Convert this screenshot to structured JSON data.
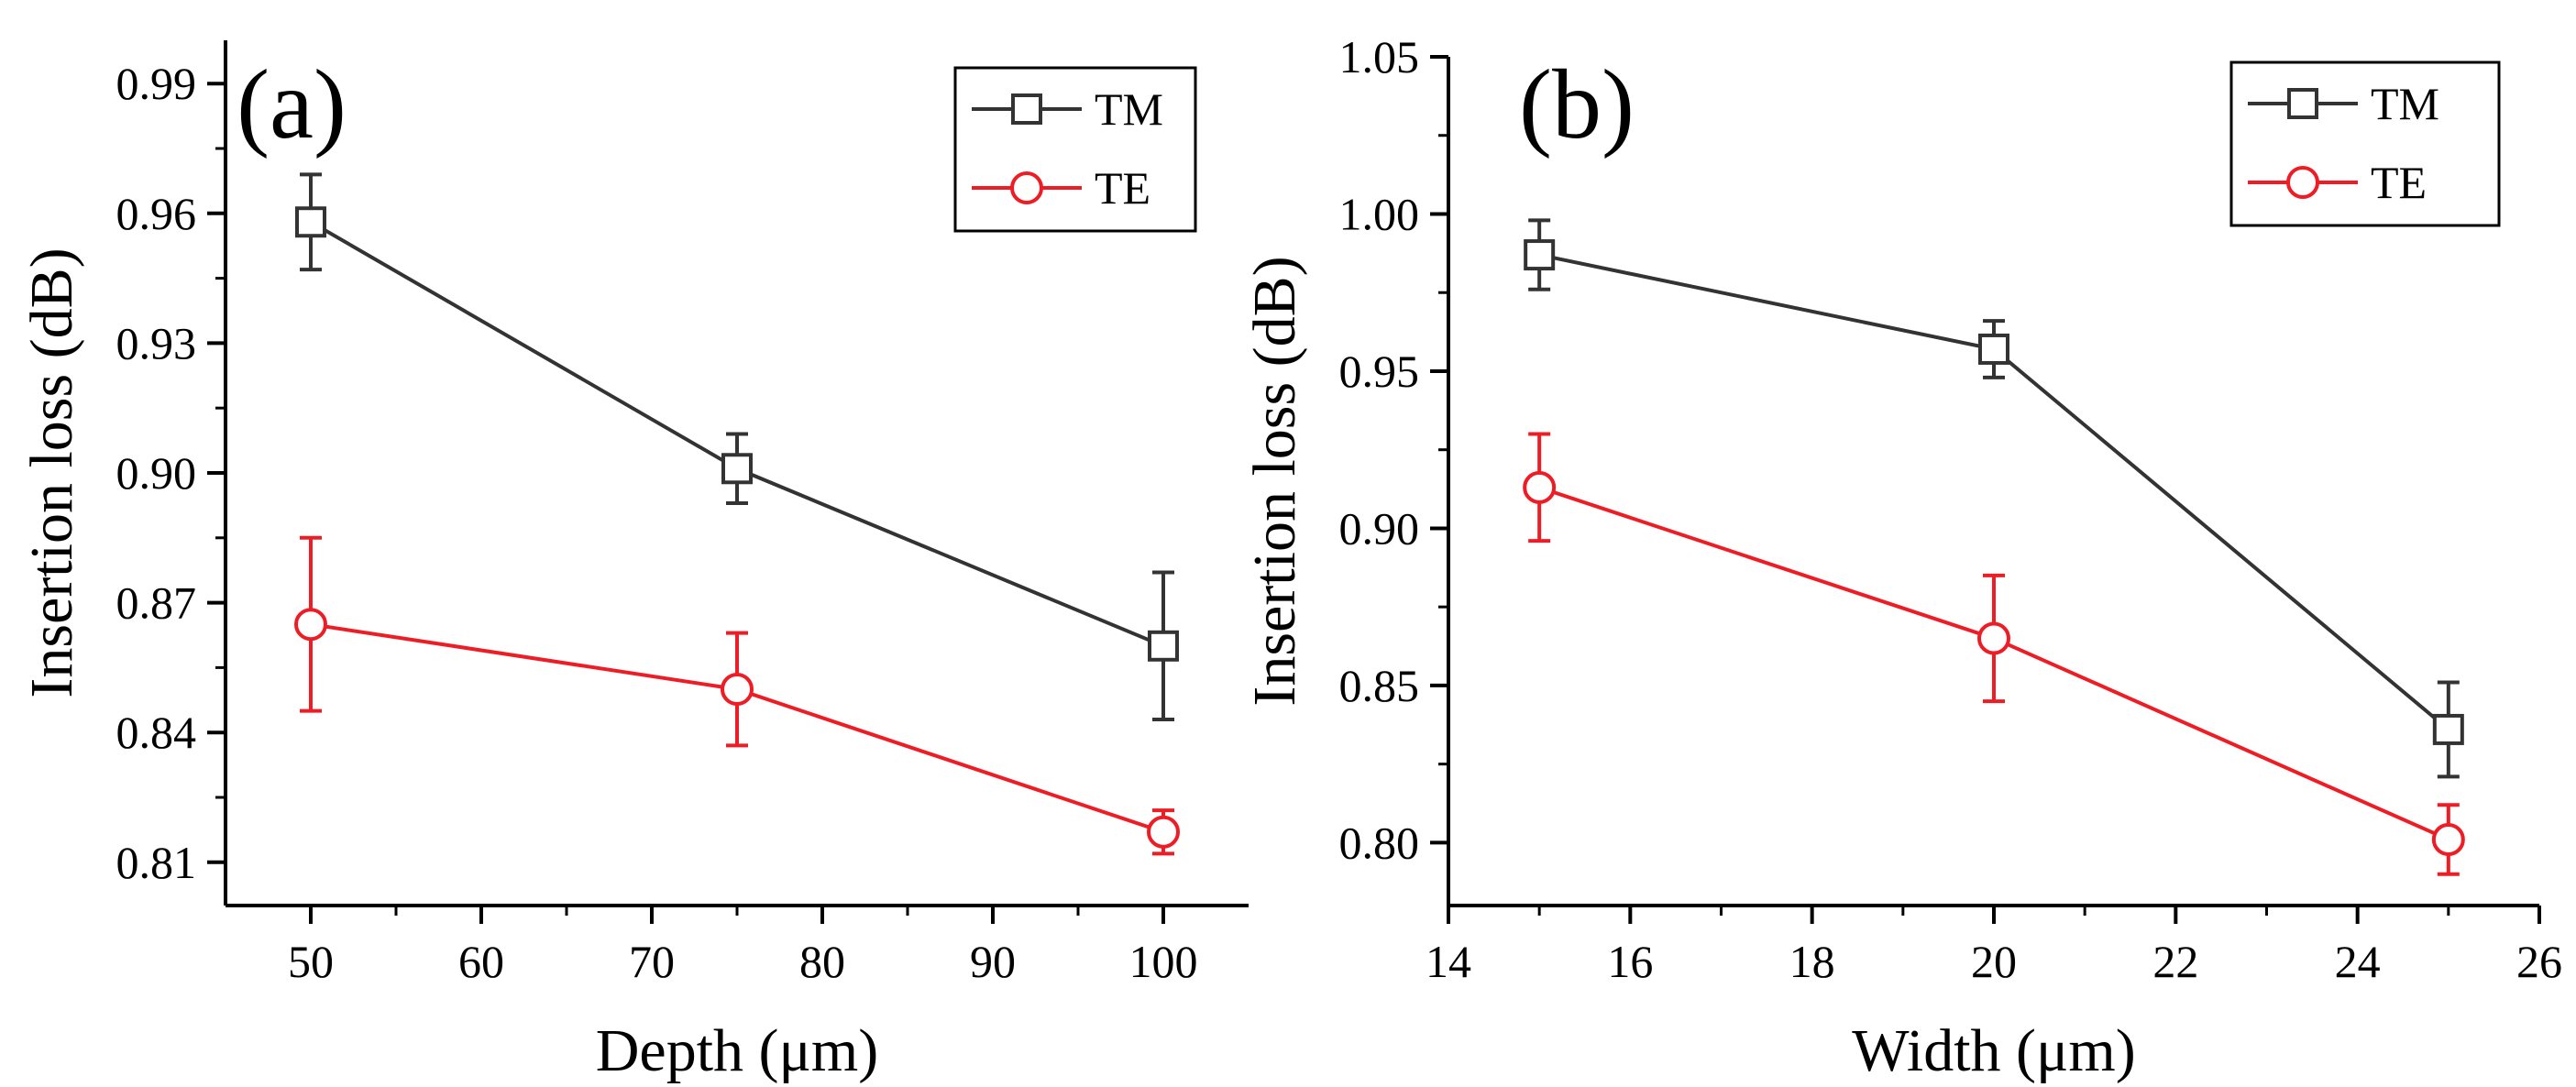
{
  "chart_data": [
    {
      "type": "line",
      "panel_label": "(a)",
      "xlabel": "Depth (μm)",
      "ylabel": "Insertion loss (dB)",
      "xlim": [
        45,
        105
      ],
      "ylim": [
        0.8,
        1.0
      ],
      "xticks": [
        50,
        60,
        70,
        80,
        90,
        100
      ],
      "xtick_labels": [
        "50",
        "60",
        "70",
        "80",
        "90",
        "100"
      ],
      "yticks": [
        0.81,
        0.84,
        0.87,
        0.9,
        0.93,
        0.96,
        0.99
      ],
      "ytick_labels": [
        "0.81",
        "0.84",
        "0.87",
        "0.90",
        "0.93",
        "0.96",
        "0.99"
      ],
      "legend_position": "top-right",
      "series": [
        {
          "name": "TM",
          "color": "#333333",
          "marker": "square",
          "x": [
            50,
            75,
            100
          ],
          "values": [
            0.958,
            0.901,
            0.86
          ],
          "errors": [
            0.011,
            0.008,
            0.017
          ]
        },
        {
          "name": "TE",
          "color": "#ee1c25",
          "marker": "circle",
          "x": [
            50,
            75,
            100
          ],
          "values": [
            0.865,
            0.85,
            0.817
          ],
          "errors": [
            0.02,
            0.013,
            0.005
          ]
        }
      ]
    },
    {
      "type": "line",
      "panel_label": "(b)",
      "xlabel": "Width (μm)",
      "ylabel": "Insertion loss (dB)",
      "xlim": [
        14,
        26
      ],
      "ylim": [
        0.78,
        1.05
      ],
      "xticks": [
        14,
        16,
        18,
        20,
        22,
        24,
        26
      ],
      "xtick_labels": [
        "14",
        "16",
        "18",
        "20",
        "22",
        "24",
        "26"
      ],
      "yticks": [
        0.8,
        0.85,
        0.9,
        0.95,
        1.0,
        1.05
      ],
      "ytick_labels": [
        "0.80",
        "0.85",
        "0.90",
        "0.95",
        "1.00",
        "1.05"
      ],
      "legend_position": "top-right",
      "series": [
        {
          "name": "TM",
          "color": "#333333",
          "marker": "square",
          "x": [
            15,
            20,
            25
          ],
          "values": [
            0.987,
            0.957,
            0.836
          ],
          "errors": [
            0.011,
            0.009,
            0.015
          ]
        },
        {
          "name": "TE",
          "color": "#ee1c25",
          "marker": "circle",
          "x": [
            15,
            20,
            25
          ],
          "values": [
            0.913,
            0.865,
            0.801
          ],
          "errors": [
            0.017,
            0.02,
            0.011
          ]
        }
      ]
    }
  ]
}
